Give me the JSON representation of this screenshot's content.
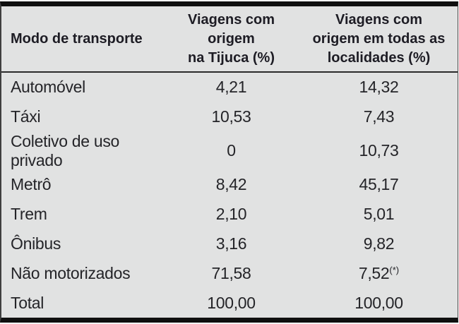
{
  "table": {
    "header": {
      "col_mode": "Modo de transporte",
      "col_tijuca": "Viagens com origem\nna Tijuca (%)",
      "col_todas": "Viagens com\norigem em todas as\nlocalidades (%)"
    },
    "rows": [
      {
        "label": "Automóvel",
        "tijuca": "4,21",
        "todas": "14,32"
      },
      {
        "label": "Táxi",
        "tijuca": "10,53",
        "todas": "7,43"
      },
      {
        "label": "Coletivo de uso privado",
        "tijuca": "0",
        "todas": "10,73"
      },
      {
        "label": "Metrô",
        "tijuca": "8,42",
        "todas": "45,17"
      },
      {
        "label": "Trem",
        "tijuca": "2,10",
        "todas": "5,01"
      },
      {
        "label": "Ônibus",
        "tijuca": "3,16",
        "todas": "9,82"
      },
      {
        "label": "Não motorizados",
        "tijuca": "71,58",
        "todas": "7,52",
        "todas_note": "(*)"
      },
      {
        "label": "Total",
        "tijuca": "100,00",
        "todas": "100,00"
      }
    ],
    "colors": {
      "background": "#e1e2e2",
      "rule": "#0f0f0f",
      "text": "#242428"
    }
  },
  "chart_data": {
    "type": "table",
    "title": "",
    "columns": [
      "Modo de transporte",
      "Viagens com origem na Tijuca (%)",
      "Viagens com origem em todas as localidades (%)"
    ],
    "rows": [
      [
        "Automóvel",
        "4,21",
        "14,32"
      ],
      [
        "Táxi",
        "10,53",
        "7,43"
      ],
      [
        "Coletivo de uso privado",
        "0",
        "10,73"
      ],
      [
        "Metrô",
        "8,42",
        "45,17"
      ],
      [
        "Trem",
        "2,10",
        "5,01"
      ],
      [
        "Ônibus",
        "3,16",
        "9,82"
      ],
      [
        "Não motorizados",
        "71,58",
        "7,52(*)"
      ],
      [
        "Total",
        "100,00",
        "100,00"
      ]
    ]
  }
}
